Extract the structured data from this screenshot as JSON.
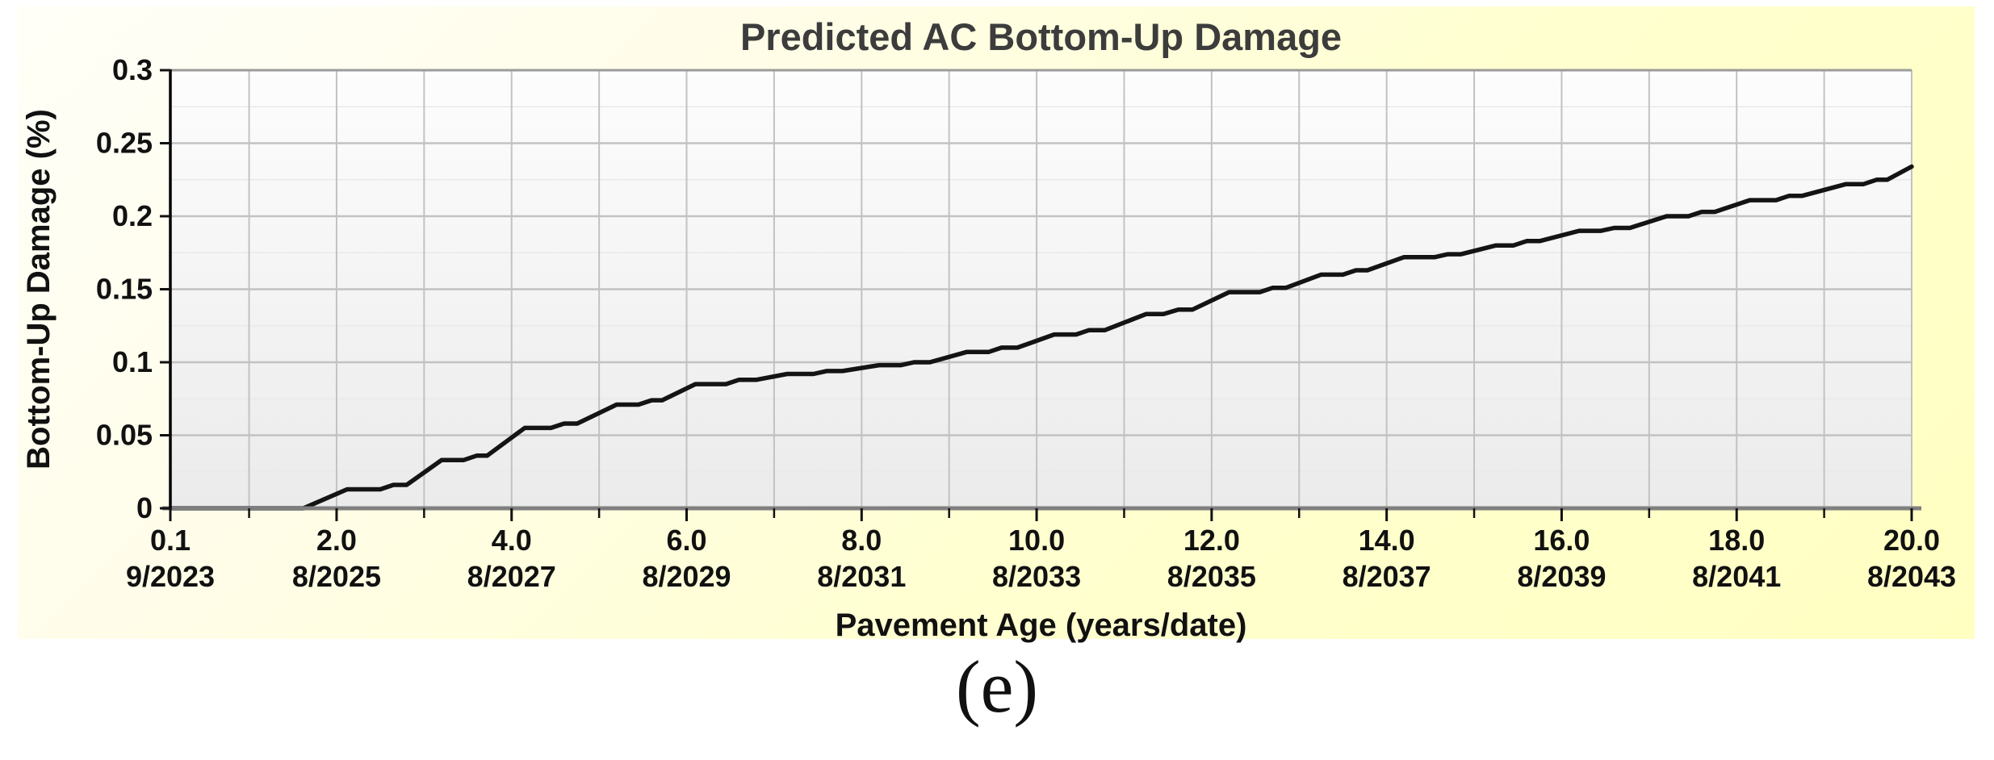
{
  "page": {
    "caption": "(e)"
  },
  "colors": {
    "panel_bg_start": "#fffff8",
    "panel_bg_end": "#ffffc2",
    "plot_bg_top": "#fdfdfd",
    "plot_bg_bottom": "#ebebeb",
    "grid_major": "#c2c2c2",
    "grid_minor": "#e9e9e9",
    "plot_border": "#9c9c9c",
    "x_axis": "#7f7f7f",
    "y_axis": "#000000",
    "title_color": "#3c3c3c",
    "curve": "#141414"
  },
  "chart_data": {
    "type": "line",
    "title": "Predicted AC Bottom-Up Damage",
    "xlabel": "Pavement Age (years/date)",
    "ylabel": "Bottom-Up Damage (%)",
    "xlim": [
      0.1,
      20.0
    ],
    "ylim": [
      0,
      0.3
    ],
    "grid": true,
    "legend": "none",
    "x_grid_interval": 1.0,
    "y_major_interval": 0.05,
    "y_minor_interval": 0.025,
    "x_ticks": [
      {
        "pos": 0.1,
        "label": "0.1",
        "date": "9/2023"
      },
      {
        "pos": 2.0,
        "label": "2.0",
        "date": "8/2025"
      },
      {
        "pos": 4.0,
        "label": "4.0",
        "date": "8/2027"
      },
      {
        "pos": 6.0,
        "label": "6.0",
        "date": "8/2029"
      },
      {
        "pos": 8.0,
        "label": "8.0",
        "date": "8/2031"
      },
      {
        "pos": 10.0,
        "label": "10.0",
        "date": "8/2033"
      },
      {
        "pos": 12.0,
        "label": "12.0",
        "date": "8/2035"
      },
      {
        "pos": 14.0,
        "label": "14.0",
        "date": "8/2037"
      },
      {
        "pos": 16.0,
        "label": "16.0",
        "date": "8/2039"
      },
      {
        "pos": 18.0,
        "label": "18.0",
        "date": "8/2041"
      },
      {
        "pos": 20.0,
        "label": "20.0",
        "date": "8/2043"
      }
    ],
    "x_minor_ticks": [
      1,
      3,
      5,
      7,
      9,
      11,
      13,
      15,
      17,
      19
    ],
    "y_ticks": [
      {
        "pos": 0,
        "label": "0"
      },
      {
        "pos": 0.05,
        "label": "0.05"
      },
      {
        "pos": 0.1,
        "label": "0.1"
      },
      {
        "pos": 0.15,
        "label": "0.15"
      },
      {
        "pos": 0.2,
        "label": "0.2"
      },
      {
        "pos": 0.25,
        "label": "0.25"
      },
      {
        "pos": 0.3,
        "label": "0.3"
      }
    ],
    "series": [
      {
        "name": "Predicted AC bottom-up damage",
        "color": "#141414",
        "points": [
          [
            0.1,
            0
          ],
          [
            1.62,
            0
          ],
          [
            2.12,
            0.013
          ],
          [
            2.5,
            0.013
          ],
          [
            2.65,
            0.016
          ],
          [
            2.8,
            0.016
          ],
          [
            3.2,
            0.033
          ],
          [
            3.45,
            0.033
          ],
          [
            3.6,
            0.036
          ],
          [
            3.72,
            0.036
          ],
          [
            4.15,
            0.055
          ],
          [
            4.45,
            0.055
          ],
          [
            4.6,
            0.058
          ],
          [
            4.75,
            0.058
          ],
          [
            5.2,
            0.071
          ],
          [
            5.45,
            0.071
          ],
          [
            5.6,
            0.074
          ],
          [
            5.72,
            0.074
          ],
          [
            6.1,
            0.085
          ],
          [
            6.45,
            0.085
          ],
          [
            6.6,
            0.088
          ],
          [
            6.8,
            0.088
          ],
          [
            7.15,
            0.092
          ],
          [
            7.45,
            0.092
          ],
          [
            7.6,
            0.094
          ],
          [
            7.78,
            0.094
          ],
          [
            8.2,
            0.098
          ],
          [
            8.45,
            0.098
          ],
          [
            8.6,
            0.1
          ],
          [
            8.78,
            0.1
          ],
          [
            9.2,
            0.107
          ],
          [
            9.45,
            0.107
          ],
          [
            9.6,
            0.11
          ],
          [
            9.78,
            0.11
          ],
          [
            10.2,
            0.119
          ],
          [
            10.45,
            0.119
          ],
          [
            10.6,
            0.122
          ],
          [
            10.78,
            0.122
          ],
          [
            11.25,
            0.133
          ],
          [
            11.45,
            0.133
          ],
          [
            11.62,
            0.136
          ],
          [
            11.78,
            0.136
          ],
          [
            12.2,
            0.148
          ],
          [
            12.55,
            0.148
          ],
          [
            12.7,
            0.151
          ],
          [
            12.85,
            0.151
          ],
          [
            13.25,
            0.16
          ],
          [
            13.5,
            0.16
          ],
          [
            13.65,
            0.163
          ],
          [
            13.78,
            0.163
          ],
          [
            14.2,
            0.172
          ],
          [
            14.55,
            0.172
          ],
          [
            14.7,
            0.174
          ],
          [
            14.85,
            0.174
          ],
          [
            15.25,
            0.18
          ],
          [
            15.45,
            0.18
          ],
          [
            15.6,
            0.183
          ],
          [
            15.75,
            0.183
          ],
          [
            16.2,
            0.19
          ],
          [
            16.45,
            0.19
          ],
          [
            16.6,
            0.192
          ],
          [
            16.78,
            0.192
          ],
          [
            17.2,
            0.2
          ],
          [
            17.45,
            0.2
          ],
          [
            17.6,
            0.203
          ],
          [
            17.75,
            0.203
          ],
          [
            18.15,
            0.211
          ],
          [
            18.45,
            0.211
          ],
          [
            18.6,
            0.214
          ],
          [
            18.75,
            0.214
          ],
          [
            19.25,
            0.222
          ],
          [
            19.45,
            0.222
          ],
          [
            19.6,
            0.225
          ],
          [
            19.72,
            0.225
          ],
          [
            20,
            0.234
          ]
        ]
      }
    ]
  }
}
